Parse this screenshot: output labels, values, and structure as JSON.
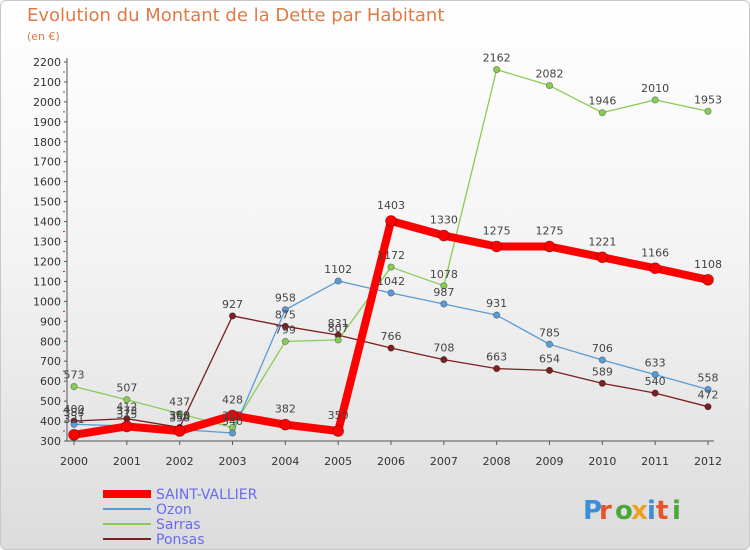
{
  "chart_data": {
    "type": "line",
    "title": "Evolution du Montant de la Dette par Habitant",
    "unit": "(en €)",
    "x": [
      "2000",
      "2001",
      "2002",
      "2003",
      "2004",
      "2005",
      "2006",
      "2007",
      "2008",
      "2009",
      "2010",
      "2011",
      "2012"
    ],
    "ylim": [
      300,
      2200
    ],
    "ytick_step": 100,
    "grid": false,
    "legend_position": "bottom-left",
    "series": [
      {
        "name": "Ponsas",
        "color": "#7a2020",
        "values": [
          400,
          412,
          368,
          927,
          875,
          831,
          766,
          708,
          663,
          654,
          589,
          540,
          472
        ]
      },
      {
        "name": "Sarras",
        "color": "#88cc55",
        "values": [
          573,
          507,
          437,
          367,
          799,
          807,
          1172,
          1078,
          2162,
          2082,
          1946,
          2010,
          1953
        ]
      },
      {
        "name": "Ozon",
        "color": "#5b9bd5",
        "values": [
          384,
          375,
          358,
          340,
          958,
          1102,
          1042,
          987,
          931,
          785,
          706,
          633,
          558
        ]
      },
      {
        "name": "SAINT-VALLIER",
        "color": "#ff0000",
        "values": [
          331,
          373,
          350,
          428,
          382,
          350,
          1403,
          1330,
          1275,
          1275,
          1221,
          1166,
          1108
        ]
      }
    ]
  },
  "logo": {
    "text": "Proxiti"
  }
}
